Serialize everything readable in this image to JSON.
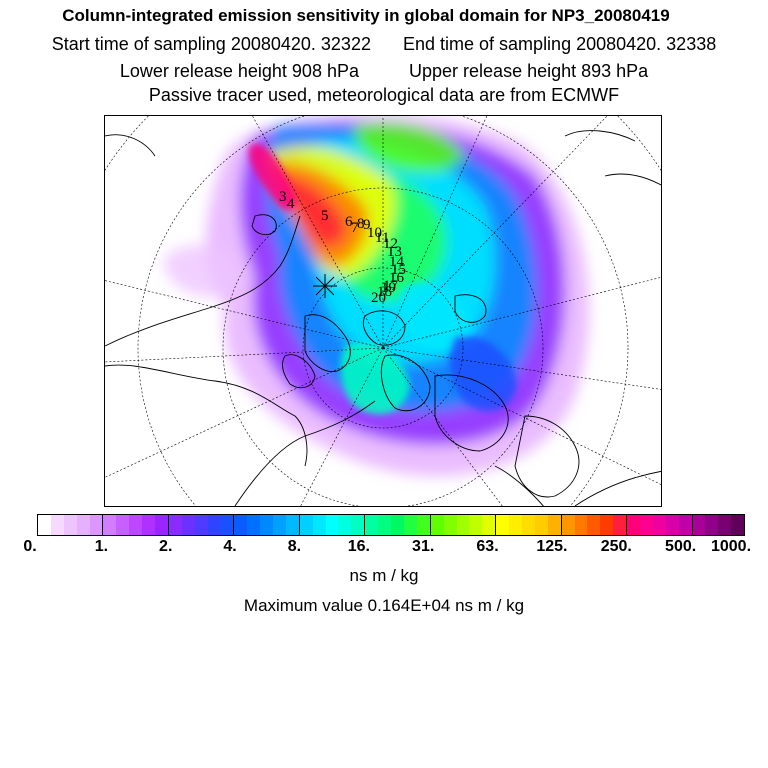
{
  "header": {
    "title": "Column-integrated emission sensitivity in global domain for NP3_20080419",
    "start_time": "Start time of sampling 20080420. 32322",
    "end_time": "End time of sampling 20080420. 32338",
    "lower_release": "Lower release height  908 hPa",
    "upper_release": "Upper release height  893 hPa",
    "tracer_note": "Passive tracer used, meteorological data are from ECMWF"
  },
  "map": {
    "projection": "polar stereographic (north)",
    "trajectory_labels": [
      "3",
      "4",
      "5",
      "6",
      "7",
      "8",
      "9",
      "10",
      "11",
      "12",
      "13",
      "14",
      "15",
      "16",
      "17",
      "18",
      "19",
      "20"
    ],
    "release_marker": "release-site"
  },
  "legend": {
    "tick_labels": [
      "0.",
      "1.",
      "2.",
      "4.",
      "8.",
      "16.",
      "31.",
      "63.",
      "125.",
      "250.",
      "500.",
      "1000."
    ],
    "colors": [
      "#ffffff",
      "#f6d9ff",
      "#eec4ff",
      "#e6b0ff",
      "#dc96ff",
      "#d27cff",
      "#c860ff",
      "#be46ff",
      "#b030ff",
      "#9b25ff",
      "#8a2cff",
      "#6b32ff",
      "#4f3aff",
      "#3044ff",
      "#1a50ff",
      "#0a5cff",
      "#0070ff",
      "#0088ff",
      "#00a0ff",
      "#00b8ff",
      "#00d0ff",
      "#00e8ff",
      "#00ffff",
      "#00ffe0",
      "#00ffc0",
      "#00ffa0",
      "#00ff80",
      "#00f860",
      "#20ff40",
      "#40ff20",
      "#60ff00",
      "#80ff00",
      "#a0ff00",
      "#c0ff00",
      "#e0ff00",
      "#ffff00",
      "#ffee00",
      "#ffdd00",
      "#ffcc00",
      "#ffb000",
      "#ff9600",
      "#ff7800",
      "#ff5a00",
      "#ff3c00",
      "#ff1e3c",
      "#ff0078",
      "#ff0090",
      "#f000a0",
      "#d800a8",
      "#c000a8",
      "#a80098",
      "#900088",
      "#780070",
      "#600058"
    ],
    "units": "ns m / kg",
    "max_value": "Maximum value  0.164E+04 ns m / kg"
  }
}
